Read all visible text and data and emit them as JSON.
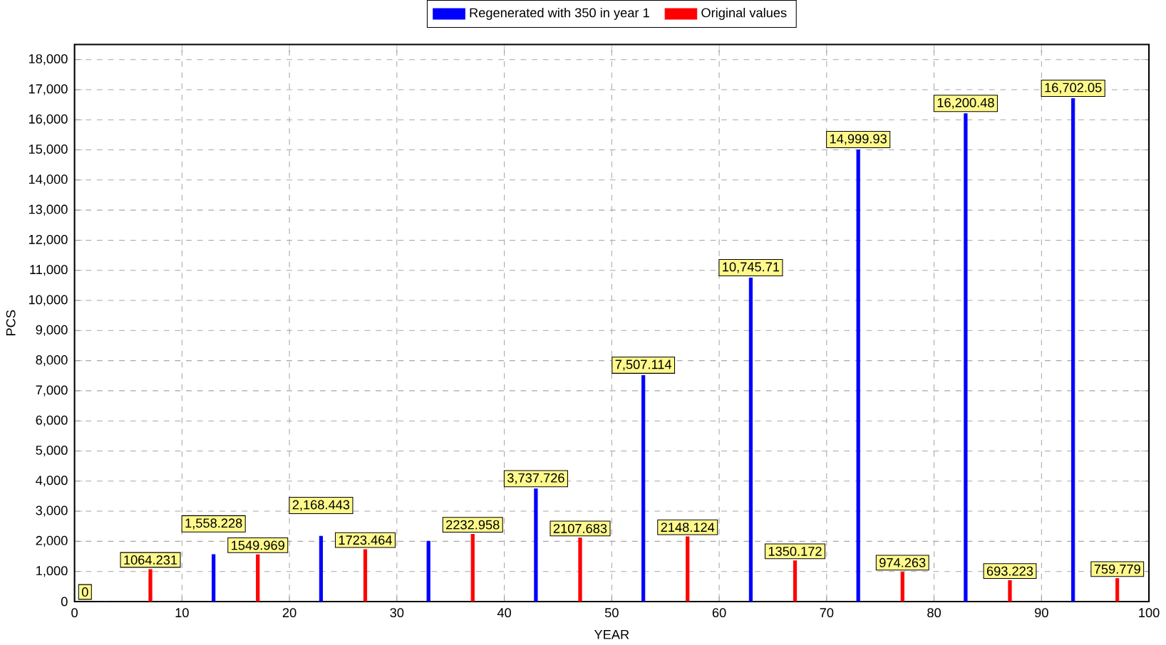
{
  "chart_data": {
    "type": "bar",
    "xlabel": "YEAR",
    "ylabel": "PCS",
    "x": [
      0,
      10,
      20,
      30,
      40,
      50,
      60,
      70,
      80,
      90,
      100
    ],
    "series": [
      {
        "name": "Regenerated with 350 in year 1",
        "color": "#0000ff",
        "values": [
          0,
          1558.228,
          2168.443,
          2000,
          3737.726,
          7507.114,
          10745.71,
          14999.93,
          16200.48,
          16702.05,
          null
        ],
        "value_labels": [
          null,
          "1,558.228",
          "2,168.443",
          null,
          "3,737.726",
          "7,507.114",
          "10,745.71",
          "14,999.93",
          "16,200.48",
          "16,702.05",
          null
        ]
      },
      {
        "name": "Original values",
        "color": "#ff0000",
        "values": [
          0,
          1064.231,
          1549.969,
          1723.464,
          2232.958,
          2107.683,
          2148.124,
          1350.172,
          974.263,
          693.223,
          759.779
        ],
        "value_labels": [
          "0",
          "1064.231",
          "1549.969",
          "1723.464",
          "2232.958",
          "2107.683",
          "2148.124",
          "1350.172",
          "974.263",
          "693.223",
          "759.779"
        ]
      }
    ],
    "xlim": [
      0,
      100
    ],
    "xticks": [
      0,
      10,
      20,
      30,
      40,
      50,
      60,
      70,
      80,
      90,
      100
    ],
    "ylim": [
      0,
      18500
    ],
    "yticks": [
      0,
      {
        "value": 1000,
        "label": "1,000"
      },
      {
        "value": 2000,
        "label": "2,000"
      },
      {
        "value": 3000,
        "label": "3,000"
      },
      {
        "value": 4000,
        "label": "4,000"
      },
      {
        "value": 5000,
        "label": "5,000"
      },
      {
        "value": 6000,
        "label": "6,000"
      },
      {
        "value": 7000,
        "label": "7,000"
      },
      {
        "value": 8000,
        "label": "8,000"
      },
      {
        "value": 9000,
        "label": "9,000"
      },
      {
        "value": 10000,
        "label": "10,000"
      },
      {
        "value": 11000,
        "label": "11,000"
      },
      {
        "value": 12000,
        "label": "12,000"
      },
      {
        "value": 13000,
        "label": "13,000"
      },
      {
        "value": 14000,
        "label": "14,000"
      },
      {
        "value": 15000,
        "label": "15,000"
      },
      {
        "value": 16000,
        "label": "16,000"
      },
      {
        "value": 17000,
        "label": "17,000"
      },
      {
        "value": 18000,
        "label": "18,000"
      }
    ],
    "grid": true,
    "legend": "top"
  }
}
